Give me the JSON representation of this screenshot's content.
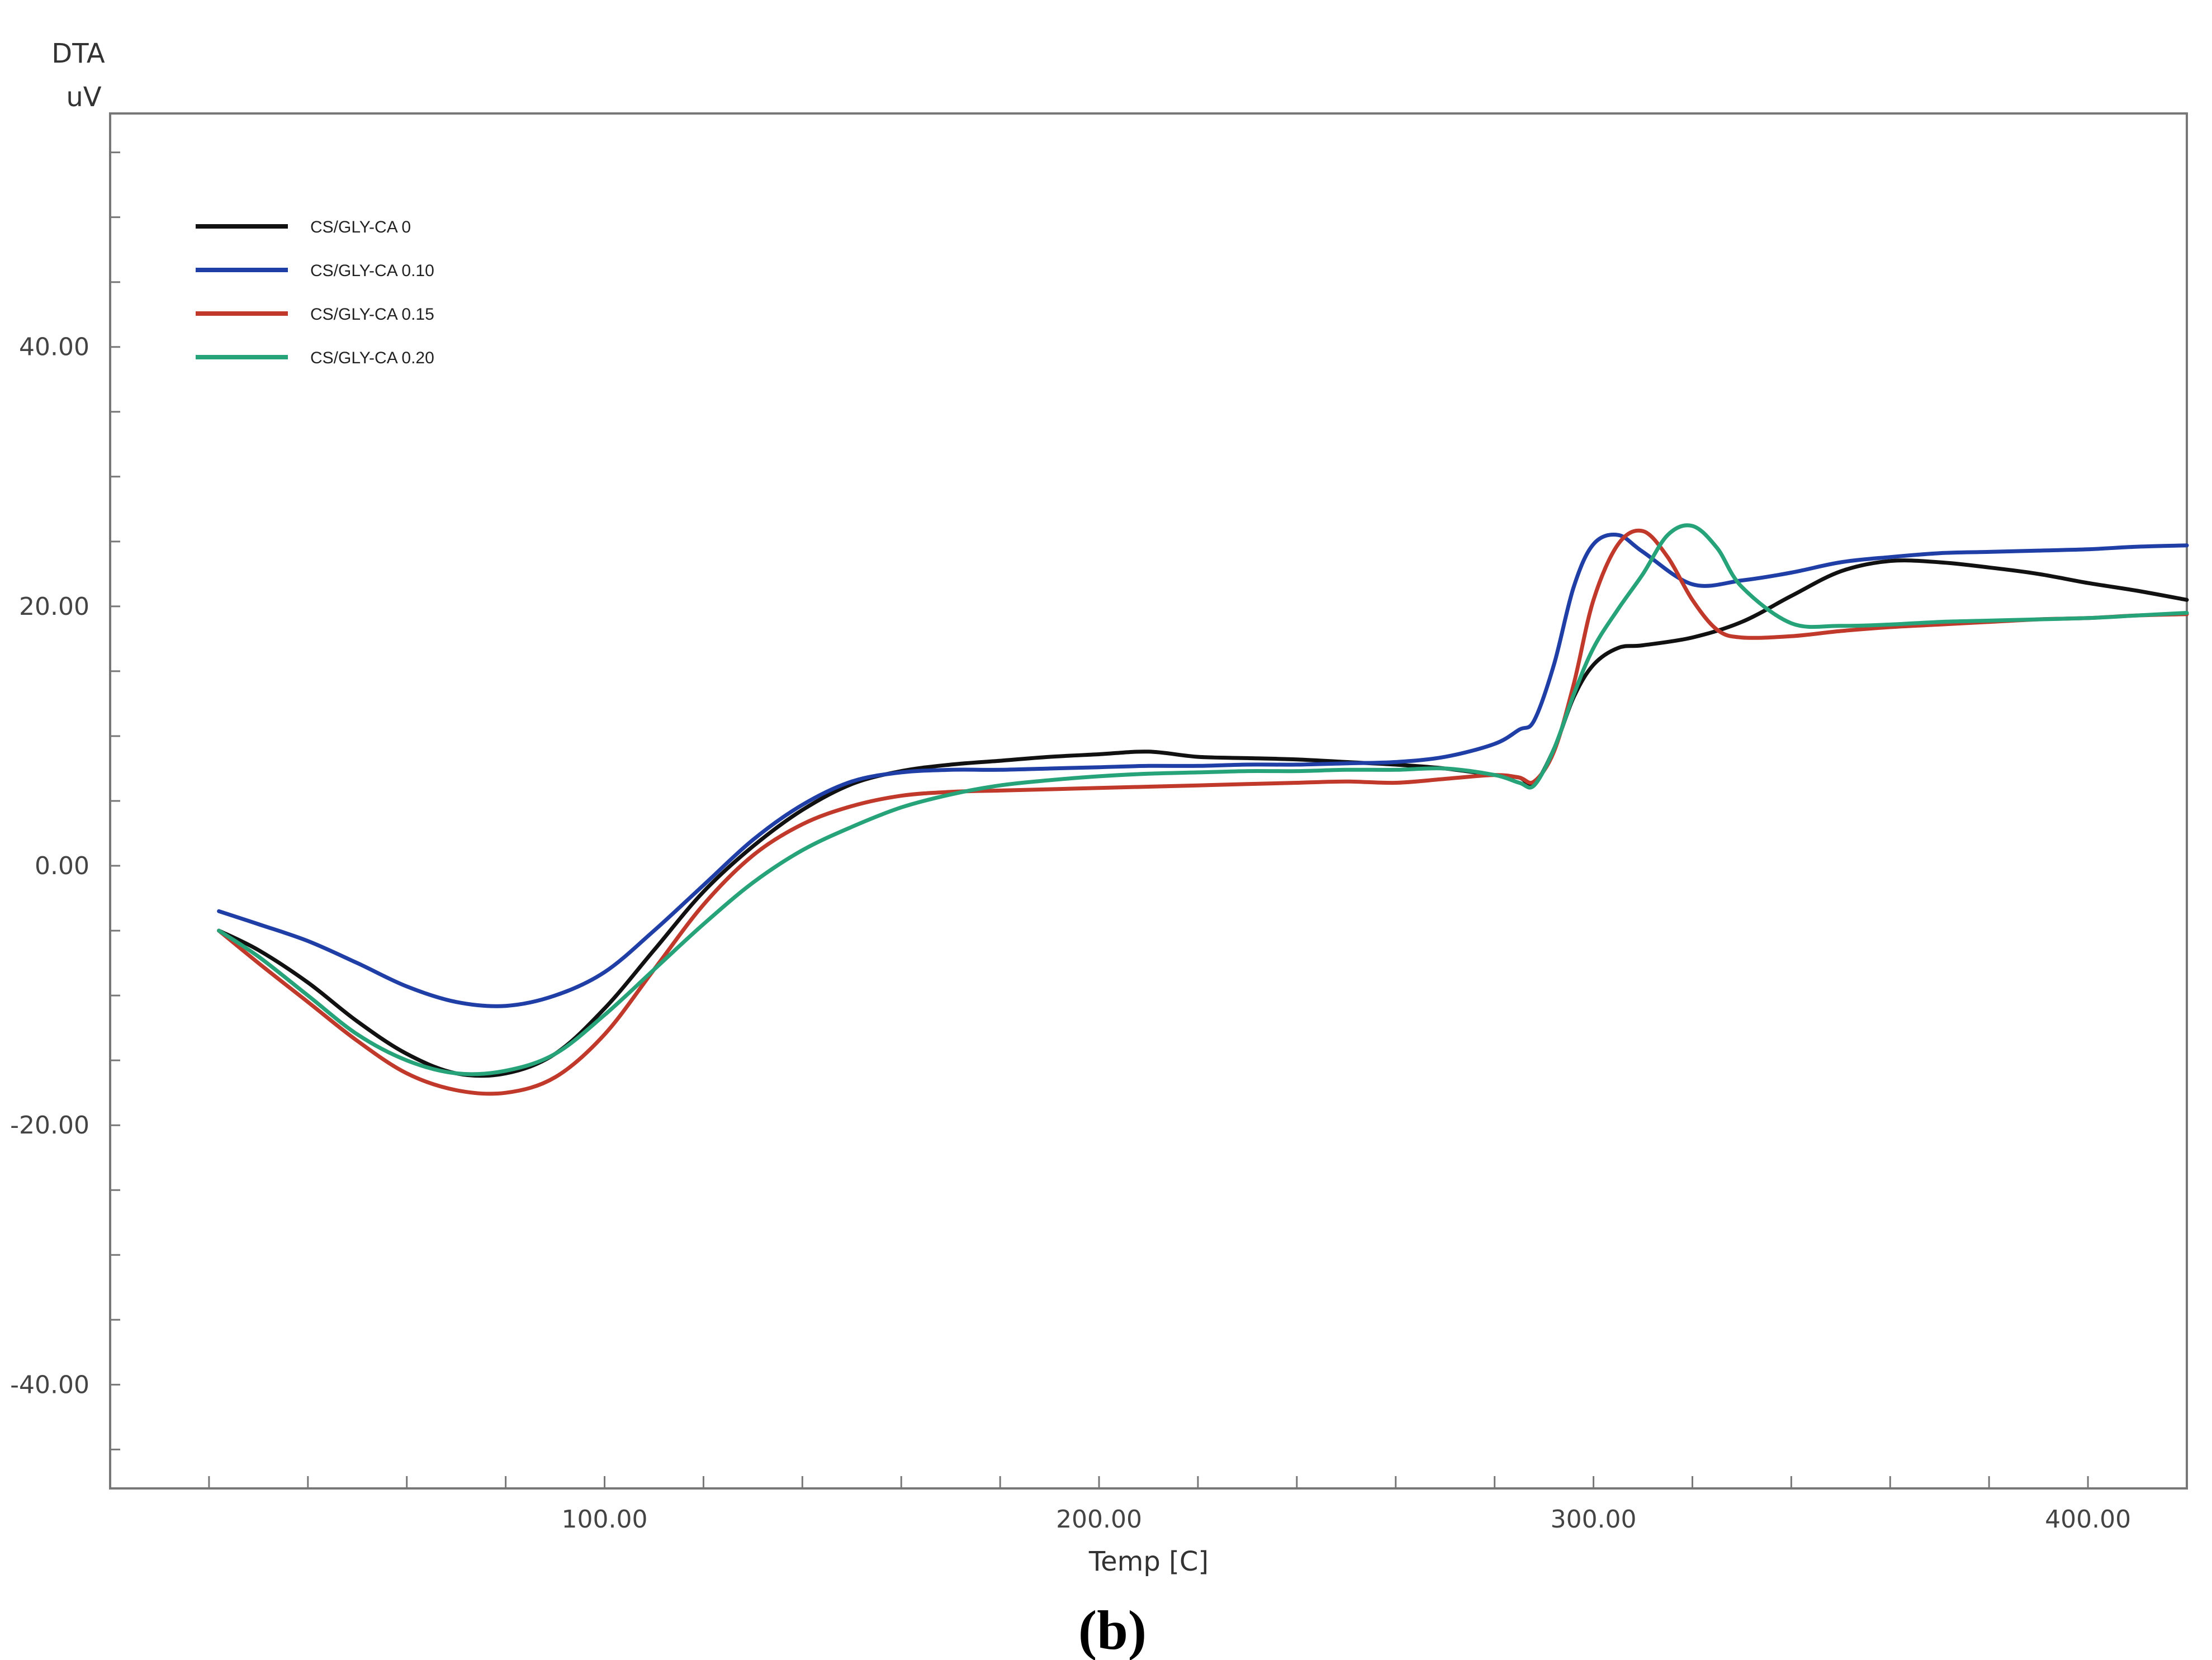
{
  "figure_label": "(b)",
  "chart_data": {
    "type": "line",
    "title": "",
    "xlabel": "Temp  [C]",
    "ylabel_line1": "DTA",
    "ylabel_line2": "uV",
    "xlim": [
      0,
      420
    ],
    "ylim": [
      -48,
      58
    ],
    "xticks": [
      100,
      200,
      300,
      400
    ],
    "xtick_labels": [
      "100.00",
      "200.00",
      "300.00",
      "400.00"
    ],
    "yticks": [
      -40,
      -20,
      0,
      20,
      40
    ],
    "ytick_labels": [
      "-40.00",
      "-20.00",
      "0.00",
      "20.00",
      "40.00"
    ],
    "grid": false,
    "legend_position": "top-left",
    "series": [
      {
        "name": "CS/GLY-CA 0",
        "color": "#111111",
        "x": [
          22,
          30,
          40,
          50,
          60,
          70,
          80,
          90,
          100,
          110,
          120,
          130,
          140,
          150,
          160,
          170,
          180,
          190,
          200,
          210,
          220,
          230,
          240,
          250,
          260,
          270,
          280,
          285,
          288,
          292,
          296,
          300,
          305,
          310,
          320,
          330,
          340,
          350,
          360,
          370,
          380,
          390,
          400,
          410,
          420
        ],
        "y": [
          -5,
          -6.5,
          -9,
          -12,
          -14.5,
          -16,
          -16,
          -14.5,
          -11,
          -6.5,
          -2,
          1.5,
          4.3,
          6.3,
          7.3,
          7.8,
          8.1,
          8.4,
          8.6,
          8.8,
          8.4,
          8.3,
          8.2,
          8.0,
          7.8,
          7.5,
          7.0,
          6.8,
          6.3,
          9.0,
          13.0,
          15.5,
          16.8,
          17.0,
          17.6,
          18.8,
          20.8,
          22.7,
          23.5,
          23.4,
          23.0,
          22.5,
          21.8,
          21.2,
          20.5
        ]
      },
      {
        "name": "CS/GLY-CA 0.10",
        "color": "#1f3ea6",
        "x": [
          22,
          30,
          40,
          50,
          60,
          70,
          80,
          90,
          100,
          110,
          120,
          130,
          140,
          150,
          160,
          170,
          180,
          190,
          200,
          210,
          220,
          230,
          240,
          250,
          260,
          270,
          280,
          285,
          288,
          292,
          296,
          300,
          305,
          310,
          320,
          330,
          340,
          350,
          360,
          370,
          380,
          390,
          400,
          410,
          420
        ],
        "y": [
          -3.5,
          -4.5,
          -5.8,
          -7.5,
          -9.3,
          -10.5,
          -10.8,
          -10,
          -8.2,
          -5,
          -1.5,
          2,
          4.7,
          6.5,
          7.2,
          7.4,
          7.4,
          7.5,
          7.6,
          7.7,
          7.7,
          7.8,
          7.8,
          7.9,
          8.0,
          8.4,
          9.4,
          10.5,
          11.2,
          15.5,
          21.5,
          24.8,
          25.5,
          24.2,
          21.7,
          22.0,
          22.6,
          23.4,
          23.8,
          24.1,
          24.2,
          24.3,
          24.4,
          24.6,
          24.7
        ]
      },
      {
        "name": "CS/GLY-CA 0.15",
        "color": "#c0392b",
        "x": [
          22,
          30,
          40,
          50,
          60,
          70,
          80,
          90,
          100,
          110,
          120,
          130,
          140,
          150,
          160,
          170,
          180,
          190,
          200,
          210,
          220,
          230,
          240,
          250,
          260,
          270,
          280,
          285,
          288,
          292,
          296,
          300,
          305,
          310,
          315,
          320,
          325,
          330,
          340,
          350,
          360,
          370,
          380,
          390,
          400,
          410,
          420
        ],
        "y": [
          -5,
          -7.5,
          -10.5,
          -13.5,
          -16,
          -17.3,
          -17.5,
          -16.3,
          -13,
          -8,
          -3,
          0.8,
          3.2,
          4.6,
          5.4,
          5.7,
          5.8,
          5.9,
          6.0,
          6.1,
          6.2,
          6.3,
          6.4,
          6.5,
          6.4,
          6.7,
          7.0,
          6.8,
          6.5,
          8.8,
          14.0,
          20.5,
          24.8,
          25.8,
          23.8,
          20.5,
          18.2,
          17.6,
          17.7,
          18.1,
          18.4,
          18.6,
          18.8,
          19.0,
          19.1,
          19.3,
          19.4
        ]
      },
      {
        "name": "CS/GLY-CA 0.20",
        "color": "#27a37a",
        "x": [
          22,
          30,
          40,
          50,
          60,
          70,
          80,
          90,
          100,
          110,
          120,
          130,
          140,
          150,
          160,
          170,
          180,
          190,
          200,
          210,
          220,
          230,
          240,
          250,
          260,
          270,
          280,
          285,
          288,
          292,
          296,
          300,
          305,
          310,
          315,
          320,
          325,
          330,
          340,
          350,
          360,
          370,
          380,
          390,
          400,
          410,
          420
        ],
        "y": [
          -5,
          -7,
          -10,
          -13,
          -15,
          -16,
          -15.8,
          -14.5,
          -11.5,
          -8,
          -4.5,
          -1.3,
          1.2,
          3.0,
          4.5,
          5.5,
          6.2,
          6.6,
          6.9,
          7.1,
          7.2,
          7.3,
          7.3,
          7.4,
          7.4,
          7.5,
          7.0,
          6.4,
          6.2,
          9.0,
          13.2,
          16.8,
          19.8,
          22.5,
          25.5,
          26.2,
          24.5,
          21.5,
          18.7,
          18.5,
          18.6,
          18.8,
          18.9,
          19.0,
          19.1,
          19.3,
          19.5
        ]
      }
    ]
  }
}
